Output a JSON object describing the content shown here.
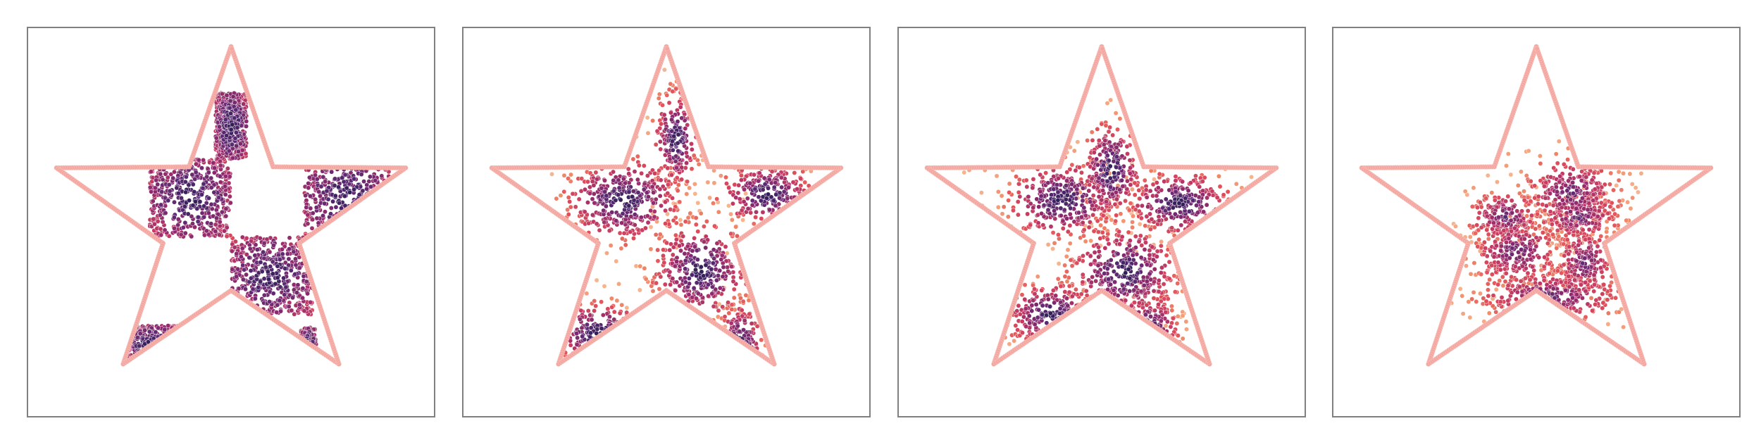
{
  "chart_data": [
    {
      "type": "scatter",
      "title": "",
      "xlabel": "",
      "ylabel": "",
      "grid": false,
      "xlim": [
        -1.05,
        1.05
      ],
      "ylim": [
        -1.05,
        1.05
      ],
      "boundary": {
        "shape": "five-point star",
        "color": "#f4a6a0",
        "outer_radius": 0.95,
        "inner_radius": 0.37
      },
      "colormap": [
        "#f6b48f",
        "#f08b69",
        "#e0505a",
        "#c23a63",
        "#8e2a6d",
        "#5a2a72",
        "#321f57"
      ],
      "clusters": [
        {
          "kind": "square",
          "cx": -0.21,
          "cy": 0.13,
          "half": 0.21
        },
        {
          "kind": "square",
          "cx": 0.21,
          "cy": -0.29,
          "half": 0.21
        },
        {
          "kind": "square",
          "cx": 0.6,
          "cy": 0.14,
          "half": 0.22
        },
        {
          "kind": "rect",
          "cx": 0.0,
          "cy": 0.52,
          "w": 0.16,
          "h": 0.36
        },
        {
          "kind": "rect",
          "cx": -0.41,
          "cy": -0.66,
          "w": 0.32,
          "h": 0.2
        },
        {
          "kind": "rect",
          "cx": 0.4,
          "cy": -0.66,
          "w": 0.08,
          "h": 0.18
        }
      ]
    },
    {
      "type": "scatter",
      "title": "",
      "xlabel": "",
      "ylabel": "",
      "grid": false,
      "xlim": [
        -1.05,
        1.05
      ],
      "ylim": [
        -1.05,
        1.05
      ],
      "clusters": [
        {
          "kind": "blob",
          "cx": -0.22,
          "cy": 0.12,
          "sx": 0.16,
          "sy": 0.12
        },
        {
          "kind": "blob",
          "cx": 0.18,
          "cy": -0.26,
          "sx": 0.13,
          "sy": 0.14
        },
        {
          "kind": "blob",
          "cx": 0.52,
          "cy": 0.15,
          "sx": 0.13,
          "sy": 0.09
        },
        {
          "kind": "blob",
          "cx": 0.05,
          "cy": 0.45,
          "sx": 0.06,
          "sy": 0.14
        },
        {
          "kind": "blob",
          "cx": -0.36,
          "cy": -0.6,
          "sx": 0.13,
          "sy": 0.09
        },
        {
          "kind": "blob",
          "cx": 0.38,
          "cy": -0.66,
          "sx": 0.06,
          "sy": 0.12
        }
      ]
    },
    {
      "type": "scatter",
      "title": "",
      "xlabel": "",
      "ylabel": "",
      "grid": false,
      "xlim": [
        -1.05,
        1.05
      ],
      "ylim": [
        -1.05,
        1.05
      ],
      "clusters": [
        {
          "kind": "blob",
          "cx": -0.2,
          "cy": 0.12,
          "sx": 0.15,
          "sy": 0.11
        },
        {
          "kind": "blob",
          "cx": 0.12,
          "cy": -0.27,
          "sx": 0.15,
          "sy": 0.13
        },
        {
          "kind": "blob",
          "cx": 0.4,
          "cy": 0.1,
          "sx": 0.14,
          "sy": 0.09
        },
        {
          "kind": "blob",
          "cx": 0.05,
          "cy": 0.28,
          "sx": 0.08,
          "sy": 0.14
        },
        {
          "kind": "blob",
          "cx": -0.26,
          "cy": -0.5,
          "sx": 0.13,
          "sy": 0.09
        },
        {
          "kind": "blob",
          "cx": 0.24,
          "cy": -0.58,
          "sx": 0.08,
          "sy": 0.1
        }
      ]
    },
    {
      "type": "scatter",
      "title": "",
      "xlabel": "",
      "ylabel": "",
      "grid": false,
      "xlim": [
        -1.05,
        1.05
      ],
      "ylim": [
        -1.05,
        1.05
      ],
      "clusters": [
        {
          "kind": "blob",
          "cx": -0.16,
          "cy": 0.03,
          "sx": 0.1,
          "sy": 0.07
        },
        {
          "kind": "blob",
          "cx": 0.22,
          "cy": 0.03,
          "sx": 0.11,
          "sy": 0.07
        },
        {
          "kind": "blob",
          "cx": 0.08,
          "cy": -0.4,
          "sx": 0.2,
          "sy": 0.07
        },
        {
          "kind": "blob",
          "cx": 0.18,
          "cy": 0.16,
          "sx": 0.13,
          "sy": 0.1
        },
        {
          "kind": "blob",
          "cx": -0.1,
          "cy": -0.16,
          "sx": 0.12,
          "sy": 0.09
        },
        {
          "kind": "blob",
          "cx": 0.25,
          "cy": -0.22,
          "sx": 0.08,
          "sy": 0.1
        }
      ]
    }
  ]
}
